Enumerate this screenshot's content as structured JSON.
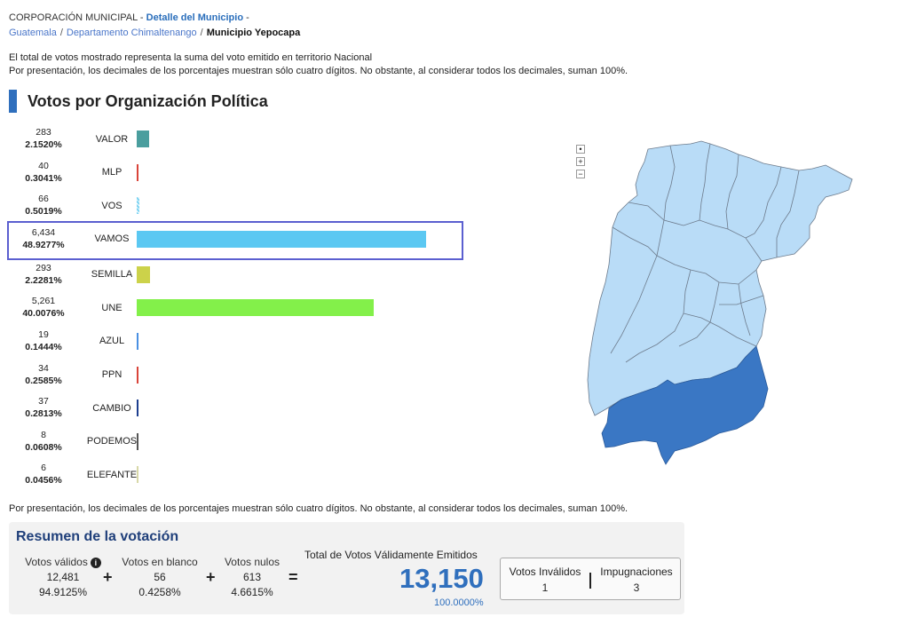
{
  "breadcrumb": {
    "org": "CORPORACIÓN MUNICIPAL -",
    "detail": "Detalle del Municipio",
    "dash": "-",
    "link1": "Guatemala",
    "link2": "Departamento Chimaltenango",
    "current": "Municipio Yepocapa"
  },
  "notes": {
    "line1": "El total de votos mostrado representa la suma del voto emitido en territorio Nacional",
    "line2": "Por presentación, los decimales de los porcentajes muestran sólo cuatro dígitos. No obstante, al considerar todos los decimales, suman 100%."
  },
  "section_title": "Votos por Organización Política",
  "chart_data": {
    "type": "bar",
    "categories": [
      "VALOR",
      "MLP",
      "VOS",
      "VAMOS",
      "SEMILLA",
      "UNE",
      "AZUL",
      "PPN",
      "CAMBIO",
      "PODEMOS",
      "ELEFANTE"
    ],
    "values": [
      283,
      40,
      66,
      6434,
      293,
      5261,
      19,
      34,
      37,
      8,
      6
    ],
    "percents": [
      "2.1520%",
      "0.3041%",
      "0.5019%",
      "48.9277%",
      "2.2281%",
      "40.0076%",
      "0.1444%",
      "0.2585%",
      "0.2813%",
      "0.0608%",
      "0.0456%"
    ],
    "labels": [
      "283",
      "40",
      "66",
      "6,434",
      "293",
      "5,261",
      "19",
      "34",
      "37",
      "8",
      "6"
    ],
    "colors": [
      "#4a9e9e",
      "#d9443a",
      "#7fd4f2",
      "#5bc8f2",
      "#ccd24a",
      "#83f04a",
      "#4a90e2",
      "#d9443a",
      "#1d3f8f",
      "#555555",
      "#d8d8a8"
    ],
    "highlighted": "VAMOS"
  },
  "footer_note": "Por presentación, los decimales de los porcentajes muestran sólo cuatro dígitos. No obstante, al considerar todos los decimales, suman 100%.",
  "summary": {
    "title": "Resumen de la votación",
    "validos": {
      "label": "Votos válidos",
      "value": "12,481",
      "pct": "94.9125%"
    },
    "blanco": {
      "label": "Votos en blanco",
      "value": "56",
      "pct": "0.4258%"
    },
    "nulos": {
      "label": "Votos nulos",
      "value": "613",
      "pct": "4.6615%"
    },
    "plus": "+",
    "equals": "=",
    "total_label": "Total de Votos Válidamente Emitidos",
    "total_value": "13,150",
    "total_pct": "100.0000%",
    "invalidos": {
      "label": "Votos Inválidos",
      "value": "1"
    },
    "impugnaciones": {
      "label": "Impugnaciones",
      "value": "3"
    },
    "info_icon": "i"
  },
  "map": {
    "controls": [
      "•",
      "+",
      "−"
    ],
    "base_color": "#b9dcf7",
    "highlight_color": "#3a77c4"
  }
}
